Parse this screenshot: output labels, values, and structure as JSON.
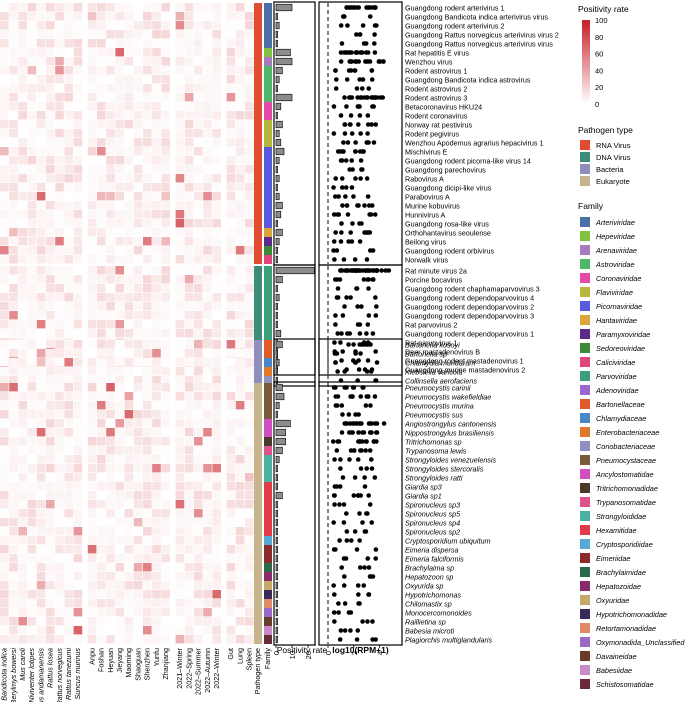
{
  "chart_data": {
    "type": "heatmap",
    "columns": {
      "species": [
        "Bandicota indica",
        "Berylmys bowersi",
        "Mus caroli",
        "Niviventer lotipes",
        "Rattus andamanensis",
        "Rattus losea",
        "Rattus norvegicus",
        "Rattus tanezumi",
        "Suncus murinus"
      ],
      "locations": [
        "Anpu",
        "Foshan",
        "Heyuan",
        "Jieyang",
        "Maoming",
        "Shaoguan",
        "Shenzhen",
        "Yunfu",
        "Zhanjiang"
      ],
      "seasons": [
        "2021–Winter",
        "2022–Spring",
        "2022–Summer",
        "2022–Autumn",
        "2022–Winter"
      ],
      "tissues": [
        "Gut",
        "Lung",
        "Spleen"
      ],
      "annotation_columns": [
        "Pathogen type",
        "Family"
      ]
    },
    "groups": [
      {
        "pathogen_type": "RNA Virus",
        "rows": [
          {
            "name": "Guangdong rodent arterivirus 1",
            "family": "Arteriviridae",
            "positivity": 10
          },
          {
            "name": "Guangdong Bandicota indica arterivirus virus",
            "family": "Arteriviridae",
            "positivity": 1
          },
          {
            "name": "Guangdong rodent arterivirus 2",
            "family": "Arteriviridae",
            "positivity": 2
          },
          {
            "name": "Guangdong Rattus norvegicus arterivirus virus 2",
            "family": "Arteriviridae",
            "positivity": 1
          },
          {
            "name": "Guangdong Rattus norvegicus arterivirus virus",
            "family": "Arteriviridae",
            "positivity": 1
          },
          {
            "name": "Rat hepatitis E virus",
            "family": "Hepeviridae",
            "positivity": 9
          },
          {
            "name": "Wenzhou virus",
            "family": "Arenaviridae",
            "positivity": 10
          },
          {
            "name": "Rodent astrovirus 1",
            "family": "Astroviridae",
            "positivity": 4
          },
          {
            "name": "Guangdong Bandicota indica astrovirus",
            "family": "Astroviridae",
            "positivity": 2
          },
          {
            "name": "Rodent astrovirus 2",
            "family": "Astroviridae",
            "positivity": 1
          },
          {
            "name": "Rodent astrovirus 3",
            "family": "Astroviridae",
            "positivity": 10
          },
          {
            "name": "Betacoronavirus HKU24",
            "family": "Coronaviridae",
            "positivity": 3
          },
          {
            "name": "Rodent coronavirus",
            "family": "Coronaviridae",
            "positivity": 1
          },
          {
            "name": "Norway rat pestivirus",
            "family": "Flaviviridae",
            "positivity": 4
          },
          {
            "name": "Rodent pegivirus",
            "family": "Flaviviridae",
            "positivity": 2
          },
          {
            "name": "Wenzhou Apodemus agrarius hepacivirus 1",
            "family": "Flaviviridae",
            "positivity": 3
          },
          {
            "name": "Mischivirus E",
            "family": "Picornaviridae",
            "positivity": 5
          },
          {
            "name": "Guangdong rodent picorna-like virus 14",
            "family": "Picornaviridae",
            "positivity": 2
          },
          {
            "name": "Guangdong parechovirus",
            "family": "Picornaviridae",
            "positivity": 1
          },
          {
            "name": "Rabovirus A",
            "family": "Picornaviridae",
            "positivity": 2
          },
          {
            "name": "Guangdong dicipi-like virus",
            "family": "Picornaviridae",
            "positivity": 1
          },
          {
            "name": "Parabovirus A",
            "family": "Picornaviridae",
            "positivity": 2
          },
          {
            "name": "Murine kobuvirus",
            "family": "Picornaviridae",
            "positivity": 4
          },
          {
            "name": "Hunnivirus A",
            "family": "Picornaviridae",
            "positivity": 3
          },
          {
            "name": "Guangdong rosa-like virus",
            "family": "Picornaviridae",
            "positivity": 1
          },
          {
            "name": "Orthohantavirus seoulense",
            "family": "Hantaviridae",
            "positivity": 4
          },
          {
            "name": "Beilong virus",
            "family": "Paramyxoviridae",
            "positivity": 2
          },
          {
            "name": "Guangdong rodent orbivirus",
            "family": "Sedoreoviridae",
            "positivity": 1
          },
          {
            "name": "Norwalk virus",
            "family": "Caliciviridae",
            "positivity": 1
          }
        ]
      },
      {
        "pathogen_type": "DNA Virus",
        "rows": [
          {
            "name": "Rat minute virus 2a",
            "family": "Parvoviridae",
            "positivity": 24
          },
          {
            "name": "Porcine bocavirus",
            "family": "Parvoviridae",
            "positivity": 4
          },
          {
            "name": "Guangdong rodent chaphamaparvovirus 3",
            "family": "Parvoviridae",
            "positivity": 1
          },
          {
            "name": "Guangdong rodent dependoparvovirus 4",
            "family": "Parvoviridae",
            "positivity": 2
          },
          {
            "name": "Guangdong rodent dependoparvovirus 2",
            "family": "Parvoviridae",
            "positivity": 1
          },
          {
            "name": "Guangdong rodent dependoparvovirus 3",
            "family": "Parvoviridae",
            "positivity": 1
          },
          {
            "name": "Rat parvovirus 2",
            "family": "Parvoviridae",
            "positivity": 1
          },
          {
            "name": "Guangdong rodent dependoparvovirus 1",
            "family": "Parvoviridae",
            "positivity": 3
          },
          {
            "name": "Rat parvovirus 1",
            "family": "Parvoviridae",
            "positivity": 1
          },
          {
            "name": "Deer mastadenovirus B",
            "family": "Adenoviridae",
            "positivity": 1
          },
          {
            "name": "Guangdong rodent mastadenovirus 1",
            "family": "Adenoviridae",
            "positivity": 1
          },
          {
            "name": "Guangdong murine mastadenovirus 2",
            "family": "Adenoviridae",
            "positivity": 1
          }
        ]
      },
      {
        "pathogen_type": "Bacteria",
        "rows": [
          {
            "name": "Bartonella kosoyi",
            "family": "Bartonellaceae",
            "positivity": 4
          },
          {
            "name": "Bartonella sp",
            "family": "Bartonellaceae",
            "positivity": 1
          },
          {
            "name": "Chlamydia muridarum",
            "family": "Chlamydiaceae",
            "positivity": 2
          },
          {
            "name": "Klebsiella varicola",
            "family": "Enterobacteriaceae",
            "positivity": 1
          },
          {
            "name": "Collinsella aerofaciens",
            "family": "Coriobacteriaceae",
            "positivity": 1
          }
        ]
      },
      {
        "pathogen_type": "Eukaryote",
        "rows": [
          {
            "name": "Pneumocystis carinii",
            "family": "Pneumocystaceae",
            "positivity": 4
          },
          {
            "name": "Pneumocystis wakefieldiae",
            "family": "Pneumocystaceae",
            "positivity": 5
          },
          {
            "name": "Pneumocystis murina",
            "family": "Pneumocystaceae",
            "positivity": 2
          },
          {
            "name": "Pneumocystis sus",
            "family": "Pneumocystaceae",
            "positivity": 1
          },
          {
            "name": "Angiostrongylus cantonensis",
            "family": "Ancylostomatidae",
            "positivity": 9
          },
          {
            "name": "Nippostrongylus brasiliensis",
            "family": "Ancylostomatidae",
            "positivity": 6
          },
          {
            "name": "Tritrichomonas sp",
            "family": "Tritrichomonadidae",
            "positivity": 6
          },
          {
            "name": "Trypanosoma lewis",
            "family": "Trypanosomatidae",
            "positivity": 4
          },
          {
            "name": "Strongyloides venezuelensis",
            "family": "Strongyloididae",
            "positivity": 2
          },
          {
            "name": "Strongyloides stercoralis",
            "family": "Strongyloididae",
            "positivity": 1
          },
          {
            "name": "Strongyloides ratti",
            "family": "Strongyloididae",
            "positivity": 1
          },
          {
            "name": "Giardia sp3",
            "family": "Hexamitidae",
            "positivity": 1
          },
          {
            "name": "Giardia sp1",
            "family": "Hexamitidae",
            "positivity": 4
          },
          {
            "name": "Spironucleus sp3",
            "family": "Hexamitidae",
            "positivity": 1
          },
          {
            "name": "Spironucleus sp5",
            "family": "Hexamitidae",
            "positivity": 1
          },
          {
            "name": "Spironucleus sp4",
            "family": "Hexamitidae",
            "positivity": 1
          },
          {
            "name": "Spironucleus sp2",
            "family": "Hexamitidae",
            "positivity": 1
          },
          {
            "name": "Cryptosporidium ubiquitum",
            "family": "Cryptosporidiidae",
            "positivity": 1
          },
          {
            "name": "Eimeria dispersa",
            "family": "Eimeriidae",
            "positivity": 1
          },
          {
            "name": "Eimeria falciformis",
            "family": "Eimeriidae",
            "positivity": 1
          },
          {
            "name": "Brachylaima sp",
            "family": "Brachylaimidae",
            "positivity": 1
          },
          {
            "name": "Hepatozoon sp",
            "family": "Hepatozoidae",
            "positivity": 1
          },
          {
            "name": "Oxyurida sp",
            "family": "Oxyuridae",
            "positivity": 1
          },
          {
            "name": "Hypotrichomonas",
            "family": "Hypotrichomonadidae",
            "positivity": 1
          },
          {
            "name": "Chilomastix sp",
            "family": "Retortamonadidae",
            "positivity": 1
          },
          {
            "name": "Monocercomonoides",
            "family": "Oxymonadida_Unclassified",
            "positivity": 1
          },
          {
            "name": "Raillietina sp",
            "family": "Davaineidae",
            "positivity": 1
          },
          {
            "name": "Babesia microti",
            "family": "Babesiidae",
            "positivity": 1
          },
          {
            "name": "Plagiorchis multiglandularis",
            "family": "Schistosomatidae",
            "positivity": 1
          }
        ]
      }
    ],
    "bar_axis": {
      "label": "Positivity rate",
      "ticks": [
        0,
        10,
        20
      ],
      "xlim": [
        0,
        25
      ]
    },
    "dot_axis": {
      "label": "log10(RPM+1)",
      "ticks": [
        0,
        2,
        4
      ],
      "xlim": [
        0,
        5.5
      ]
    },
    "legends": {
      "positivity": {
        "title": "Positivity rate",
        "ticks": [
          100,
          80,
          60,
          40,
          20,
          0
        ],
        "color_low": "#ffffff",
        "color_high": "#c81d25"
      },
      "pathogen_type": {
        "title": "Pathogen type",
        "items": [
          {
            "label": "RNA Virus",
            "color": "#e04c2f"
          },
          {
            "label": "DNA Virus",
            "color": "#3d8c7a"
          },
          {
            "label": "Bacteria",
            "color": "#8f8fbd"
          },
          {
            "label": "Eukaryote",
            "color": "#c6b58c"
          }
        ]
      },
      "family": {
        "title": "Family",
        "items": [
          {
            "label": "Arteriviridae",
            "color": "#4a6fa5"
          },
          {
            "label": "Hepeviridae",
            "color": "#7fc241"
          },
          {
            "label": "Arenaviridae",
            "color": "#a67cc0"
          },
          {
            "label": "Astroviridae",
            "color": "#4db86a"
          },
          {
            "label": "Coronaviridae",
            "color": "#e64aa8"
          },
          {
            "label": "Flaviviridae",
            "color": "#b5b83a"
          },
          {
            "label": "Picornaviridae",
            "color": "#5a5ae0"
          },
          {
            "label": "Hantaviridae",
            "color": "#d9a63a"
          },
          {
            "label": "Paramyxoviridae",
            "color": "#5a2a8a"
          },
          {
            "label": "Sedoreoviridae",
            "color": "#3a8a3a"
          },
          {
            "label": "Caliciviridae",
            "color": "#e0457b"
          },
          {
            "label": "Parvoviridae",
            "color": "#3aa07a"
          },
          {
            "label": "Adenoviridae",
            "color": "#9a68d0"
          },
          {
            "label": "Bartonellaceae",
            "color": "#e35a2a"
          },
          {
            "label": "Chlamydiaceae",
            "color": "#4a86c8"
          },
          {
            "label": "Enterobacteriaceae",
            "color": "#e0782a"
          },
          {
            "label": "Coriobacteriaceae",
            "color": "#8f8fc0"
          },
          {
            "label": "Pneumocystaceae",
            "color": "#7a5a3a"
          },
          {
            "label": "Ancylostomatidae",
            "color": "#d24fc0"
          },
          {
            "label": "Tritrichomonadidae",
            "color": "#4a3a2a"
          },
          {
            "label": "Trypanosomatidae",
            "color": "#e0508a"
          },
          {
            "label": "Strongyloididae",
            "color": "#4ab0a0"
          },
          {
            "label": "Hexamitidae",
            "color": "#e33a4a"
          },
          {
            "label": "Cryptosporidiidae",
            "color": "#58a8d8"
          },
          {
            "label": "Eimeriidae",
            "color": "#8a2a2a"
          },
          {
            "label": "Brachylaimidae",
            "color": "#2a6a4a"
          },
          {
            "label": "Hepatozoidae",
            "color": "#8a2a6a"
          },
          {
            "label": "Oxyuridae",
            "color": "#c6a86a"
          },
          {
            "label": "Hypotrichomonadidae",
            "color": "#3a2a5a"
          },
          {
            "label": "Retortamonadidae",
            "color": "#e08a6a"
          },
          {
            "label": "Oxymonadida_Unclassified",
            "color": "#9a6ac8"
          },
          {
            "label": "Davaineidae",
            "color": "#6a3a2a"
          },
          {
            "label": "Babesiidae",
            "color": "#c88ac8"
          },
          {
            "label": "Schistosomatidae",
            "color": "#6a2a3a"
          }
        ]
      }
    }
  }
}
